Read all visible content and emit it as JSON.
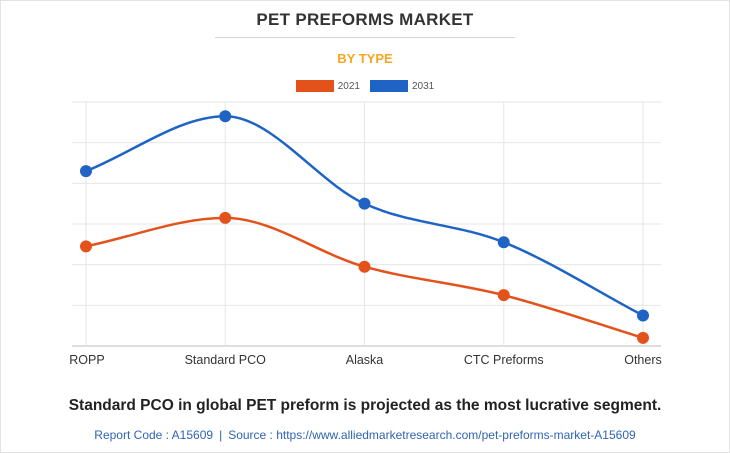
{
  "header": {
    "title": "PET PREFORMS MARKET",
    "subtitle": "BY TYPE"
  },
  "footer": {
    "caption": "Standard PCO in global PET preform is projected as the most lucrative segment.",
    "report_code": "Report Code : A15609",
    "separator": "|",
    "source": "Source : https://www.alliedmarketresearch.com/pet-preforms-market-A15609"
  },
  "colors": {
    "accent": "#f5a623",
    "series_2021": "#e4521b",
    "series_2031": "#1f64c4",
    "link": "#2f65b1"
  },
  "chart_data": {
    "type": "line",
    "title": "PET PREFORMS MARKET",
    "subtitle": "BY TYPE",
    "categories": [
      "ROPP",
      "Standard PCO",
      "Alaska",
      "CTC Preforms",
      "Others"
    ],
    "series": [
      {
        "name": "2021",
        "color": "#e4521b",
        "values": [
          2.45,
          3.15,
          1.95,
          1.25,
          0.2
        ]
      },
      {
        "name": "2031",
        "color": "#1f64c4",
        "values": [
          4.3,
          5.65,
          3.5,
          2.55,
          0.75
        ]
      }
    ],
    "xlabel": "",
    "ylabel": "",
    "ylim": [
      0,
      6
    ],
    "y_ticks_labeled": false,
    "grid": true,
    "smooth": true,
    "legend_position": "top-center"
  }
}
